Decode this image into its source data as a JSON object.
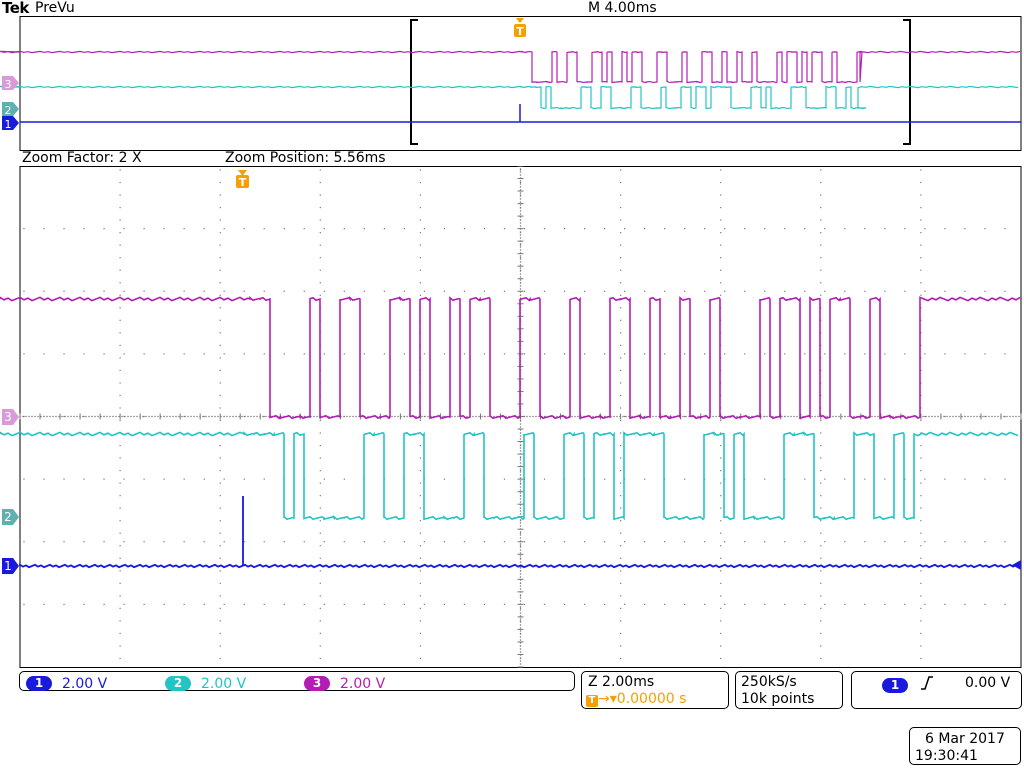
{
  "header": {
    "brand": "Tek",
    "mode": "PreVu",
    "main_timebase": "M 4.00ms",
    "zoom_factor": "Zoom Factor: 2 X",
    "zoom_position": "Zoom Position: 5.56ms",
    "trigger_marker": "T"
  },
  "channels": [
    {
      "num": "1",
      "scale": "2.00 V",
      "color": "#1a1adc"
    },
    {
      "num": "2",
      "scale": "2.00 V",
      "color": "#22c4c4"
    },
    {
      "num": "3",
      "scale": "2.00 V",
      "color": "#b31db3"
    }
  ],
  "timing": {
    "zoom_scale": "Z 2.00ms",
    "trigger_delay": "0.00000 s"
  },
  "acquisition": {
    "sample_rate": "250kS/s",
    "record_length": "10k points"
  },
  "trigger": {
    "source": "1",
    "slope_icon": "rising-edge-icon",
    "level": "0.00 V"
  },
  "datetime": {
    "date": "6 Mar  2017",
    "time": "19:30:41"
  },
  "colors": {
    "ch1": "#1a1adc",
    "ch2": "#22c4c4",
    "ch3": "#b31db3",
    "trigger": "#f5a000",
    "grid": "#888888"
  }
}
